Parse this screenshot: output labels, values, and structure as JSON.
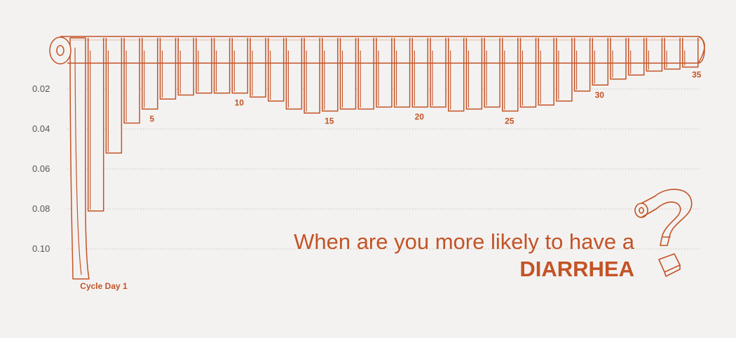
{
  "chart_data": {
    "type": "bar",
    "title": "",
    "xlabel": "",
    "ylabel": "",
    "ylim": [
      0,
      0.12
    ],
    "y_inverted": true,
    "y_ticks": [
      "0.02",
      "0.04",
      "0.06",
      "0.08",
      "0.10"
    ],
    "x_ticks": [
      {
        "day": 1,
        "label": "Cycle Day 1"
      },
      {
        "day": 5,
        "label": "5"
      },
      {
        "day": 10,
        "label": "10"
      },
      {
        "day": 15,
        "label": "15"
      },
      {
        "day": 20,
        "label": "20"
      },
      {
        "day": 25,
        "label": "25"
      },
      {
        "day": 30,
        "label": "30"
      },
      {
        "day": 35,
        "label": "35"
      }
    ],
    "categories": [
      1,
      2,
      3,
      4,
      5,
      6,
      7,
      8,
      9,
      10,
      11,
      12,
      13,
      14,
      15,
      16,
      17,
      18,
      19,
      20,
      21,
      22,
      23,
      24,
      25,
      26,
      27,
      28,
      29,
      30,
      31,
      32,
      33,
      34,
      35
    ],
    "values": [
      0.115,
      0.081,
      0.052,
      0.037,
      0.03,
      0.025,
      0.023,
      0.022,
      0.022,
      0.022,
      0.024,
      0.026,
      0.03,
      0.032,
      0.031,
      0.03,
      0.03,
      0.029,
      0.029,
      0.029,
      0.029,
      0.031,
      0.03,
      0.029,
      0.031,
      0.029,
      0.028,
      0.026,
      0.021,
      0.018,
      0.015,
      0.013,
      0.011,
      0.01,
      0.009
    ],
    "colors": {
      "stroke": "#c45326",
      "paper": "#f3f2f1",
      "grid": "#c9c2bc",
      "tick_text": "#555555"
    }
  },
  "headline": {
    "line1": "When are you more likely to have a",
    "line2": "DIARRHEA"
  },
  "icons": [
    "toilet-roll-icon",
    "toilet-paper-question-mark-icon"
  ]
}
